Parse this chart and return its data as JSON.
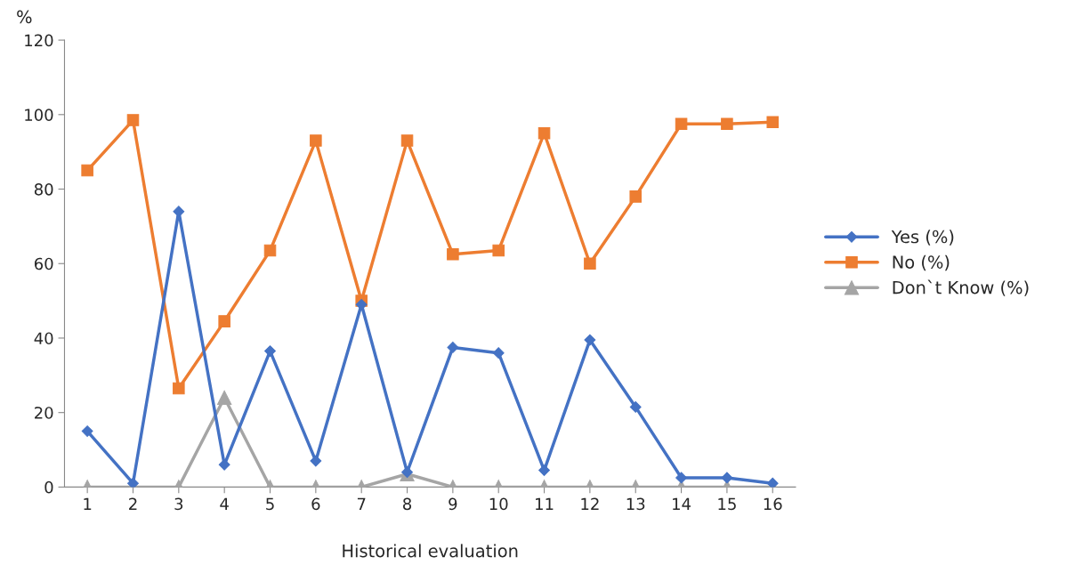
{
  "chart_data": {
    "type": "line",
    "xlabel": "Historical evaluation",
    "ylabel": "%",
    "categories": [
      "1",
      "2",
      "3",
      "4",
      "5",
      "6",
      "7",
      "8",
      "9",
      "10",
      "11",
      "12",
      "13",
      "14",
      "15",
      "16"
    ],
    "series": [
      {
        "name": "Yes (%)",
        "color": "#4472c4",
        "marker": "diamond",
        "values": [
          15,
          1,
          74,
          6,
          36.5,
          7,
          49,
          4,
          37.5,
          36,
          4.5,
          39.5,
          21.5,
          2.5,
          2.5,
          1
        ]
      },
      {
        "name": "No (%)",
        "color": "#ed7d31",
        "marker": "square",
        "values": [
          85,
          98.5,
          26.5,
          44.5,
          63.5,
          93,
          50,
          93,
          62.5,
          63.5,
          95,
          60,
          78,
          97.5,
          97.5,
          98
        ]
      },
      {
        "name": "Don`t Know (%)",
        "color": "#a5a5a5",
        "marker": "triangle",
        "values": [
          0,
          0,
          0,
          24,
          0,
          0,
          0,
          3.5,
          0,
          0,
          0,
          0,
          0,
          0,
          0,
          0
        ]
      }
    ],
    "ylim": [
      0,
      120
    ],
    "yticks": [
      0,
      20,
      40,
      60,
      80,
      100,
      120
    ],
    "grid": false,
    "legend": "right"
  }
}
